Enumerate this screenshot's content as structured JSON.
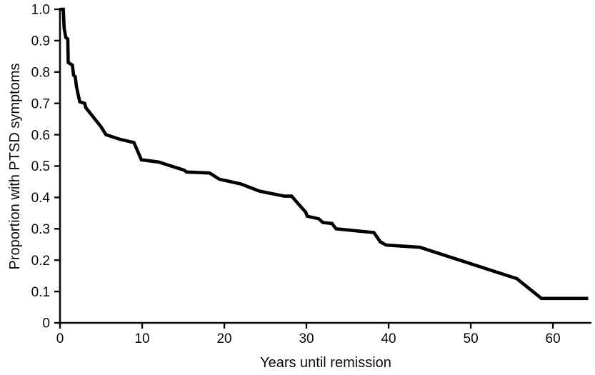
{
  "chart_data": {
    "type": "line",
    "subtype": "survival-curve",
    "title": "",
    "xlabel": "Years until remission",
    "ylabel": "Proportion with PTSD symptoms",
    "xlim": [
      0,
      64.6
    ],
    "ylim": [
      0,
      1.0
    ],
    "grid": false,
    "legend_position": "none",
    "line_color": "#000000",
    "axis_color": "#0a0a0a",
    "background_color": "#ffffff",
    "xticks": [
      {
        "value": 0,
        "label": "0"
      },
      {
        "value": 10,
        "label": "10"
      },
      {
        "value": 20,
        "label": "20"
      },
      {
        "value": 30,
        "label": "30"
      },
      {
        "value": 40,
        "label": "40"
      },
      {
        "value": 50,
        "label": "50"
      },
      {
        "value": 60,
        "label": "60"
      }
    ],
    "yticks": [
      {
        "value": 0.0,
        "label": "0"
      },
      {
        "value": 0.1,
        "label": "0.1"
      },
      {
        "value": 0.2,
        "label": "0.2"
      },
      {
        "value": 0.3,
        "label": "0.3"
      },
      {
        "value": 0.4,
        "label": "0.4"
      },
      {
        "value": 0.5,
        "label": "0.5"
      },
      {
        "value": 0.6,
        "label": "0.6"
      },
      {
        "value": 0.7,
        "label": "0.7"
      },
      {
        "value": 0.8,
        "label": "0.8"
      },
      {
        "value": 0.9,
        "label": "0.9"
      },
      {
        "value": 1.0,
        "label": "1.0"
      }
    ],
    "series": [
      {
        "name": "Proportion with PTSD symptoms",
        "points": [
          [
            0.0,
            1.0
          ],
          [
            0.4,
            1.0
          ],
          [
            0.5,
            0.94
          ],
          [
            0.7,
            0.91
          ],
          [
            0.95,
            0.905
          ],
          [
            1.0,
            0.83
          ],
          [
            1.5,
            0.822
          ],
          [
            1.65,
            0.79
          ],
          [
            1.85,
            0.785
          ],
          [
            2.0,
            0.754
          ],
          [
            2.4,
            0.705
          ],
          [
            3.0,
            0.7
          ],
          [
            3.15,
            0.686
          ],
          [
            5.0,
            0.625
          ],
          [
            5.6,
            0.6
          ],
          [
            7.2,
            0.586
          ],
          [
            9.0,
            0.575
          ],
          [
            9.9,
            0.52
          ],
          [
            12.0,
            0.513
          ],
          [
            13.8,
            0.498
          ],
          [
            15.1,
            0.487
          ],
          [
            15.4,
            0.481
          ],
          [
            18.2,
            0.478
          ],
          [
            19.4,
            0.458
          ],
          [
            22.0,
            0.443
          ],
          [
            24.3,
            0.42
          ],
          [
            27.3,
            0.404
          ],
          [
            28.2,
            0.404
          ],
          [
            29.0,
            0.38
          ],
          [
            29.9,
            0.353
          ],
          [
            30.1,
            0.34
          ],
          [
            31.5,
            0.332
          ],
          [
            32.0,
            0.32
          ],
          [
            33.1,
            0.317
          ],
          [
            33.6,
            0.3
          ],
          [
            38.2,
            0.288
          ],
          [
            39.0,
            0.258
          ],
          [
            39.7,
            0.248
          ],
          [
            43.8,
            0.241
          ],
          [
            55.6,
            0.141
          ],
          [
            58.6,
            0.078
          ],
          [
            64.3,
            0.078
          ]
        ]
      }
    ]
  }
}
